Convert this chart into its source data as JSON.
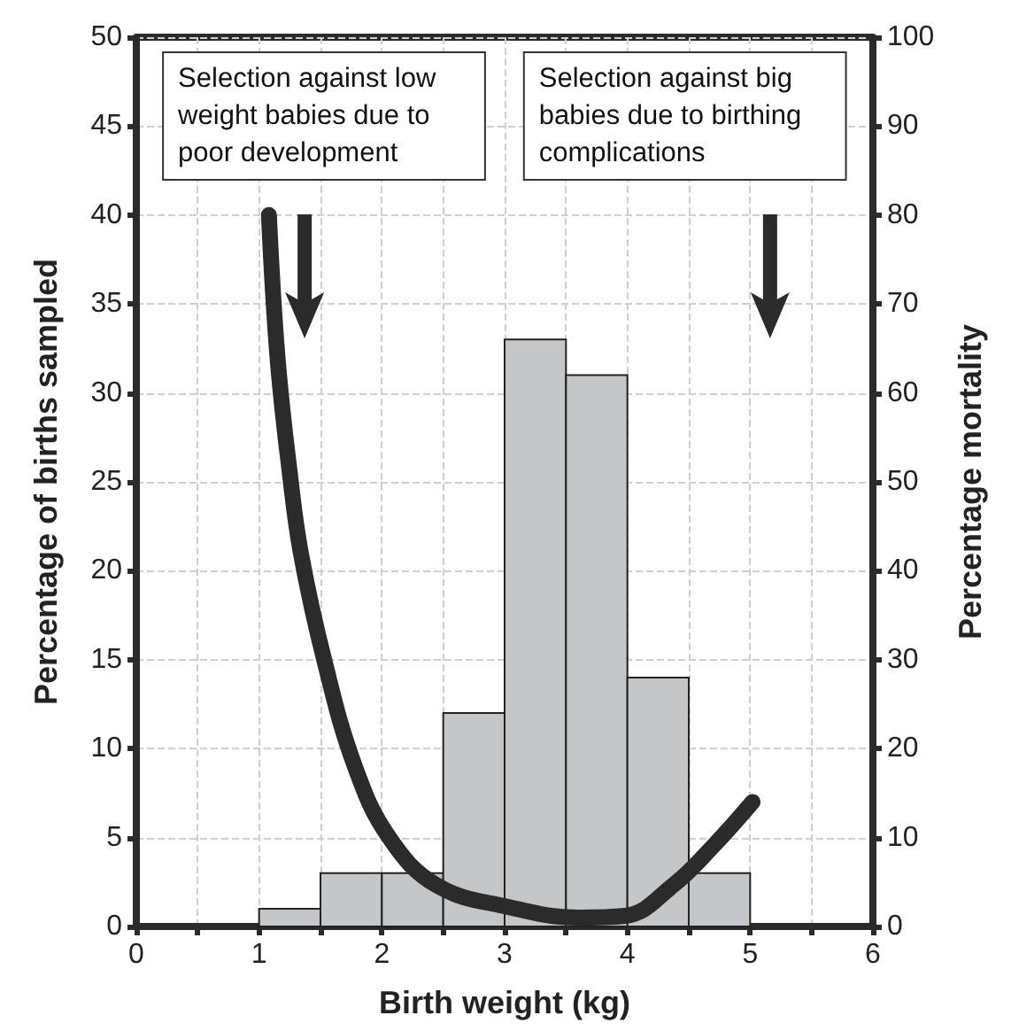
{
  "chart_data": {
    "type": "histogram",
    "xlabel": "Birth weight (kg)",
    "ylabel": "Percentage of births sampled",
    "y2label": "Percentage mortality",
    "bins": [
      1,
      1.5,
      2,
      2.5,
      3,
      3.5,
      4,
      4.5,
      5
    ],
    "values": [
      1,
      3,
      3,
      12,
      33,
      31,
      14,
      3
    ],
    "color": "#c4c6c8",
    "xlim": [
      0,
      6
    ],
    "xticks": [
      0,
      {
        "value": 0.5,
        "label": null
      },
      1,
      {
        "value": 1.5,
        "label": null
      },
      2,
      {
        "value": 2.5,
        "label": null
      },
      3,
      {
        "value": 3.5,
        "label": null
      },
      4,
      {
        "value": 4.5,
        "label": null
      },
      5,
      {
        "value": 5.5,
        "label": null
      },
      6
    ],
    "ylim": [
      0,
      50
    ],
    "yticks": [
      0,
      5,
      10,
      15,
      20,
      25,
      30,
      35,
      40,
      45,
      50
    ],
    "y2lim": [
      0,
      100
    ],
    "y2ticks": [
      0,
      10,
      20,
      30,
      40,
      50,
      60,
      70,
      80,
      90,
      100
    ],
    "series": [
      {
        "type": "line",
        "axis": "y2",
        "color": "#2b2b2b",
        "x": [
          1.08,
          1.15,
          1.25,
          1.34,
          1.53,
          1.78,
          2.06,
          2.45,
          3.03,
          3.6,
          3.98,
          4.37,
          4.71,
          5.02
        ],
        "values": [
          80,
          64,
          51,
          42,
          30,
          18,
          10,
          4.6,
          2.2,
          1,
          1.2,
          4.6,
          9.2,
          14
        ]
      }
    ],
    "grid": true,
    "annotations": [
      "Selection against low weight babies due to poor development",
      "Selection against big babies due to birthing complications"
    ]
  }
}
